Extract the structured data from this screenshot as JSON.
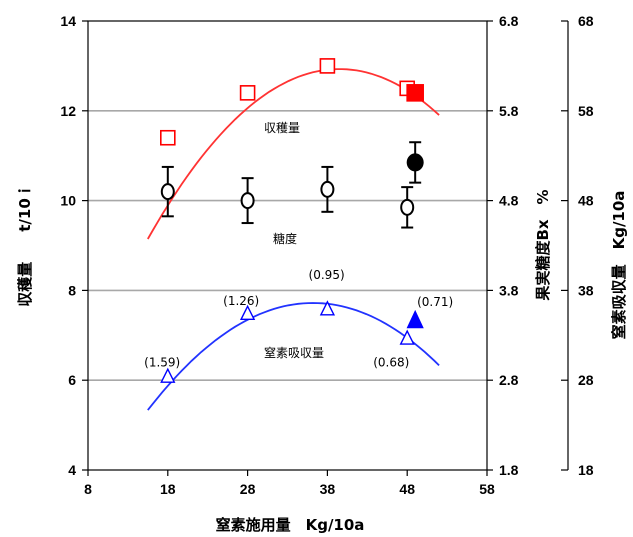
{
  "chart_data": {
    "type": "scatter",
    "xlabel": "窒素施用量　Kg/10a",
    "x_ticks": [
      "8",
      "18",
      "28",
      "38",
      "48",
      "58"
    ],
    "xlim": [
      8,
      58
    ],
    "y_left": {
      "label": "収穫量　　t/10ｉ",
      "ticks": [
        "4",
        "6",
        "8",
        "10",
        "12",
        "14"
      ],
      "lim": [
        4,
        14
      ]
    },
    "y_right1": {
      "label": "果実糖度Bx　%",
      "ticks": [
        "1.8",
        "2.8",
        "3.8",
        "4.8",
        "5.8",
        "6.8"
      ],
      "lim": [
        1.8,
        6.8
      ]
    },
    "y_right2": {
      "label": "窒素吸収量　Kg/10a",
      "ticks": [
        "18",
        "28",
        "38",
        "48",
        "58",
        "68"
      ],
      "lim": [
        18,
        68
      ]
    },
    "grid": true,
    "series": [
      {
        "name": "収穫量",
        "color": "#ff0000",
        "marker": "open-square",
        "axis": "y_left",
        "points": [
          [
            18,
            11.4
          ],
          [
            28,
            12.4
          ],
          [
            38,
            13.0
          ],
          [
            48,
            12.5
          ]
        ],
        "highlight": [
          [
            49,
            12.4
          ]
        ]
      },
      {
        "name": "糖度",
        "color": "#000000",
        "marker": "open-circle",
        "axis": "y_left",
        "points": [
          [
            18,
            10.2
          ],
          [
            28,
            10.0
          ],
          [
            38,
            10.25
          ],
          [
            48,
            9.85
          ]
        ],
        "errors": [
          0.55,
          0.5,
          0.5,
          0.45
        ],
        "highlight": [
          [
            49,
            10.85
          ]
        ],
        "highlight_errors": [
          0.45
        ]
      },
      {
        "name": "窒素吸収量",
        "color": "#0000ff",
        "marker": "open-triangle",
        "axis": "y_left",
        "points": [
          [
            18,
            6.1
          ],
          [
            28,
            7.5
          ],
          [
            38,
            7.6
          ],
          [
            48,
            6.95
          ]
        ],
        "highlight": [
          [
            49,
            7.35
          ]
        ]
      }
    ],
    "annotations": [
      {
        "text": "(1.59)",
        "x": 17.3,
        "y": 6.3
      },
      {
        "text": "(1.26)",
        "x": 27.2,
        "y": 7.67
      },
      {
        "text": "(0.95)",
        "x": 37.9,
        "y": 8.25
      },
      {
        "text": "(0.71)",
        "x": 51.5,
        "y": 7.65
      },
      {
        "text": "(0.68)",
        "x": 46.0,
        "y": 6.3
      }
    ]
  },
  "curves": {
    "red": {
      "x": [
        15.5,
        52
      ],
      "a": -0.00657,
      "peak_x": 39.5,
      "peak_y": 12.93
    },
    "blue": {
      "x": [
        15.5,
        52
      ],
      "a": -0.00557,
      "peak_x": 36.2,
      "peak_y": 7.72
    }
  }
}
